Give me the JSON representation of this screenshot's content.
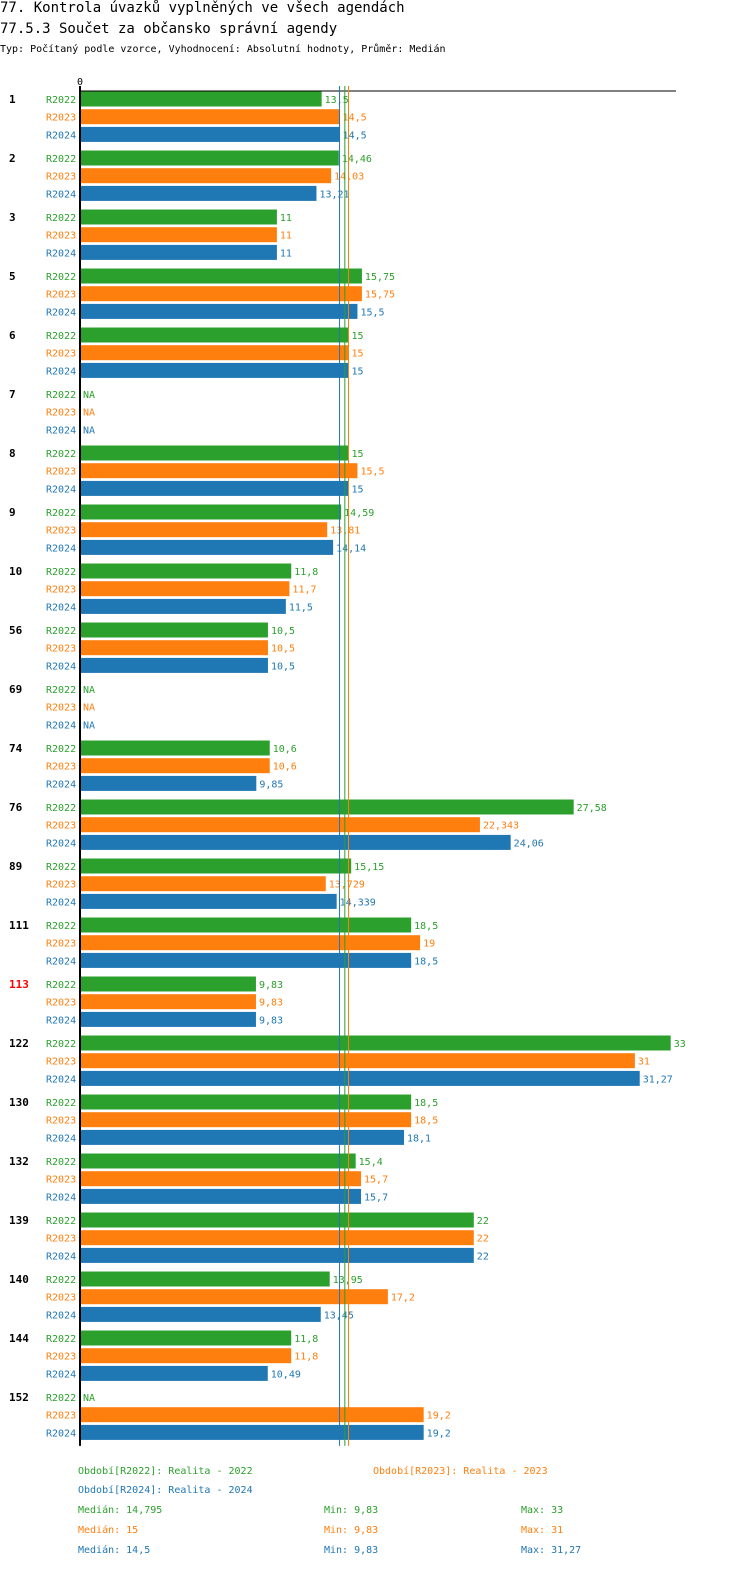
{
  "header": {
    "title": "77. Kontrola úvazků vyplněných ve všech agendách",
    "subtitle": "77.5.3 Součet za občansko správní agendy",
    "type_line": "Typ: Počítaný podle vzorce, Vyhodnocení: Absolutní hodnoty, Průměr: Medián"
  },
  "colors": {
    "R2022": "#2ca02c",
    "R2023": "#ff7f0e",
    "R2024": "#1f77b4",
    "highlight": "#ff0000",
    "axis": "#000000"
  },
  "chart_data": {
    "type": "bar",
    "orientation": "horizontal",
    "axis_zero_label": "0",
    "xlim": [
      0,
      33
    ],
    "na_label": "NA",
    "series_names": [
      "R2022",
      "R2023",
      "R2024"
    ],
    "groups": [
      {
        "id": "1",
        "values": [
          "13,5",
          "14,5",
          "14,5"
        ]
      },
      {
        "id": "2",
        "values": [
          "14,46",
          "14,03",
          "13,21"
        ]
      },
      {
        "id": "3",
        "values": [
          "11",
          "11",
          "11"
        ]
      },
      {
        "id": "5",
        "values": [
          "15,75",
          "15,75",
          "15,5"
        ]
      },
      {
        "id": "6",
        "values": [
          "15",
          "15",
          "15"
        ]
      },
      {
        "id": "7",
        "values": [
          null,
          null,
          null
        ]
      },
      {
        "id": "8",
        "values": [
          "15",
          "15,5",
          "15"
        ]
      },
      {
        "id": "9",
        "values": [
          "14,59",
          "13,81",
          "14,14"
        ]
      },
      {
        "id": "10",
        "values": [
          "11,8",
          "11,7",
          "11,5"
        ]
      },
      {
        "id": "56",
        "values": [
          "10,5",
          "10,5",
          "10,5"
        ]
      },
      {
        "id": "69",
        "values": [
          null,
          null,
          null
        ]
      },
      {
        "id": "74",
        "values": [
          "10,6",
          "10,6",
          "9,85"
        ]
      },
      {
        "id": "76",
        "values": [
          "27,58",
          "22,343",
          "24,06"
        ]
      },
      {
        "id": "89",
        "values": [
          "15,15",
          "13,729",
          "14,339"
        ]
      },
      {
        "id": "111",
        "values": [
          "18,5",
          "19",
          "18,5"
        ]
      },
      {
        "id": "113",
        "values": [
          "9,83",
          "9,83",
          "9,83"
        ],
        "highlight": true
      },
      {
        "id": "122",
        "values": [
          "33",
          "31",
          "31,27"
        ]
      },
      {
        "id": "130",
        "values": [
          "18,5",
          "18,5",
          "18,1"
        ]
      },
      {
        "id": "132",
        "values": [
          "15,4",
          "15,7",
          "15,7"
        ]
      },
      {
        "id": "139",
        "values": [
          "22",
          "22",
          "22"
        ]
      },
      {
        "id": "140",
        "values": [
          "13,95",
          "17,2",
          "13,45"
        ]
      },
      {
        "id": "144",
        "values": [
          "11,8",
          "11,8",
          "10,49"
        ]
      },
      {
        "id": "152",
        "values": [
          null,
          "19,2",
          "19,2"
        ]
      }
    ],
    "medians": [
      14.795,
      15,
      14.5
    ]
  },
  "legend": {
    "r2022": "Období[R2022]: Realita - 2022",
    "r2023": "Období[R2023]: Realita - 2023",
    "r2024": "Období[R2024]: Realita - 2024"
  },
  "stats": [
    {
      "median": "Medián: 14,795",
      "min": "Min: 9,83",
      "max": "Max: 33"
    },
    {
      "median": "Medián: 15",
      "min": "Min: 9,83",
      "max": "Max: 31"
    },
    {
      "median": "Medián: 14,5",
      "min": "Min: 9,83",
      "max": "Max: 31,27"
    }
  ]
}
